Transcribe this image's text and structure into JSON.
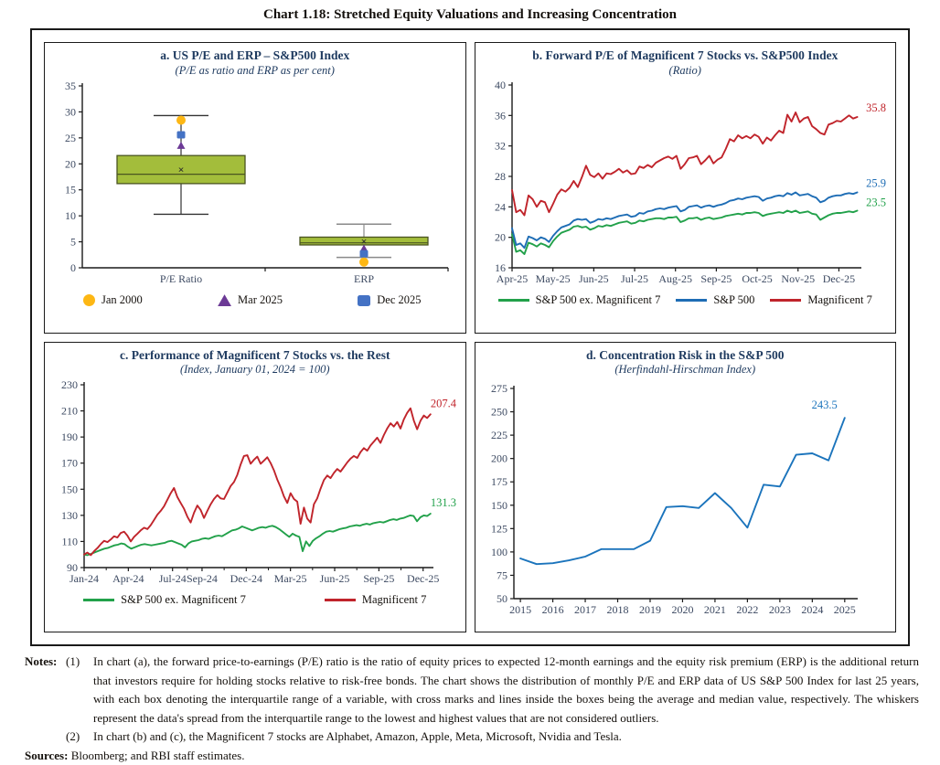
{
  "title": "Chart 1.18: Stretched Equity Valuations and Increasing Concentration",
  "notes": {
    "label": "Notes:",
    "note1_num": "(1)",
    "note1": "In chart (a), the forward price-to-earnings (P/E) ratio is the ratio of equity prices to expected 12-month earnings and the equity risk premium (ERP) is the additional return that investors require for holding stocks relative to risk-free bonds. The chart shows the distribution of monthly P/E and ERP data of US S&P 500 Index for last 25 years, with each box denoting the interquartile range of a variable, with cross marks and lines inside the boxes being the average and median value, respectively. The whiskers represent the data's spread from the interquartile range to the lowest and highest values that are not considered outliers.",
    "note2_num": "(2)",
    "note2": "In chart (b) and (c), the Magnificent 7 stocks are Alphabet, Amazon, Apple, Meta, Microsoft, Nvidia and Tesla.",
    "sources_label": "Sources:",
    "sources": "Bloomberg; and RBI staff estimates."
  },
  "chart_data": [
    {
      "id": "a",
      "type": "box",
      "title": "a. US P/E and ERP – S&P500 Index",
      "subtitle": "(P/E as ratio and ERP as per cent)",
      "ylim": [
        0,
        35
      ],
      "yticks": [
        0,
        5,
        10,
        15,
        20,
        25,
        30,
        35
      ],
      "margins": {
        "l": 34,
        "r": 12,
        "t": 7,
        "b": 24
      },
      "box_fill": "#A3BD3B",
      "box_stroke": "#4A5420",
      "groups": [
        {
          "label": "P/E Ratio",
          "center": 0.27,
          "q1": 16.2,
          "q3": 21.6,
          "median": 18.0,
          "mean": 18.9,
          "whisker_low": 10.3,
          "whisker_high": 29.3,
          "whisker_color": "#333333",
          "markers": {
            "jan2000": 28.4,
            "mar2025": 23.5,
            "dec2025": 25.6
          }
        },
        {
          "label": "ERP",
          "center": 0.77,
          "q1": 4.4,
          "q3": 5.9,
          "median": 4.8,
          "mean": 5.1,
          "whisker_low": 2.0,
          "whisker_high": 8.4,
          "whisker_color": "#8a8a8a",
          "markers": {
            "jan2000": 1.1,
            "mar2025": 3.7,
            "dec2025": 2.7
          }
        }
      ],
      "legend": [
        {
          "label": "Jan 2000",
          "marker": "circle",
          "color": "#FDB714"
        },
        {
          "label": "Mar 2025",
          "marker": "triangle",
          "color": "#6C3A96"
        },
        {
          "label": "Dec 2025",
          "marker": "square",
          "color": "#4472C4"
        }
      ]
    },
    {
      "id": "b",
      "type": "line",
      "title": "b. Forward P/E of Magnificent 7 Stocks vs. S&P500 Index",
      "subtitle": "(Ratio)",
      "ylim": [
        16,
        40
      ],
      "yticks": [
        16,
        20,
        24,
        28,
        32,
        36,
        40
      ],
      "xlim": [
        0,
        8.55
      ],
      "xticks": [
        0,
        1,
        2,
        3,
        4,
        5,
        6,
        7,
        8
      ],
      "xlabels": [
        "Apr-25",
        "May-25",
        "Jun-25",
        "Jul-25",
        "Aug-25",
        "Sep-25",
        "Oct-25",
        "Nov-25",
        "Dec-25"
      ],
      "margins": {
        "l": 34,
        "r": 30,
        "t": 6,
        "b": 24
      },
      "series": [
        {
          "name": "S&P 500 ex. Magnificent 7",
          "color": "#22A14A",
          "end_label": "23.5",
          "label_x": "right",
          "label_dy": -5,
          "xspan": [
            0,
            8.45
          ],
          "values": [
            20.4,
            18.1,
            18.3,
            17.8,
            19.3,
            19.1,
            18.8,
            19.2,
            19.0,
            18.7,
            19.5,
            20.1,
            20.6,
            20.8,
            21.0,
            21.4,
            21.5,
            21.3,
            21.4,
            21.0,
            21.2,
            21.5,
            21.4,
            21.6,
            21.5,
            21.7,
            21.9,
            22.0,
            22.1,
            21.8,
            21.9,
            22.2,
            22.1,
            22.3,
            22.4,
            22.5,
            22.5,
            22.4,
            22.6,
            22.6,
            22.7,
            22.0,
            22.2,
            22.5,
            22.5,
            22.6,
            22.3,
            22.5,
            22.6,
            22.4,
            22.5,
            22.6,
            22.8,
            22.9,
            23.0,
            23.1,
            23.0,
            23.2,
            23.2,
            23.3,
            23.2,
            22.8,
            23.0,
            23.1,
            23.2,
            23.3,
            23.2,
            23.5,
            23.3,
            23.5,
            23.2,
            23.3,
            23.4,
            23.1,
            23.0,
            22.3,
            22.6,
            22.9,
            23.1,
            23.2,
            23.2,
            23.3,
            23.4,
            23.3,
            23.5
          ]
        },
        {
          "name": "S&P 500",
          "color": "#1E6DB5",
          "end_label": "25.9",
          "label_x": "right",
          "label_dy": -6,
          "xspan": [
            0,
            8.45
          ],
          "values": [
            21.2,
            19.0,
            19.2,
            18.6,
            20.1,
            19.9,
            19.6,
            20.0,
            19.8,
            19.4,
            20.2,
            20.8,
            21.3,
            21.5,
            21.7,
            22.2,
            22.4,
            22.3,
            22.4,
            21.9,
            22.1,
            22.4,
            22.3,
            22.5,
            22.4,
            22.6,
            22.8,
            22.9,
            23.0,
            22.7,
            22.8,
            23.2,
            23.1,
            23.4,
            23.5,
            23.7,
            23.8,
            23.7,
            23.9,
            24.0,
            24.1,
            23.4,
            23.6,
            24.0,
            24.1,
            24.2,
            23.9,
            24.1,
            24.2,
            24.0,
            24.2,
            24.3,
            24.5,
            24.8,
            24.9,
            25.1,
            25.0,
            25.2,
            25.3,
            25.4,
            25.3,
            24.8,
            25.1,
            25.2,
            25.4,
            25.5,
            25.4,
            25.8,
            25.6,
            25.9,
            25.5,
            25.6,
            25.7,
            25.4,
            25.2,
            24.6,
            24.8,
            25.2,
            25.4,
            25.5,
            25.5,
            25.7,
            25.8,
            25.7,
            25.9
          ]
        },
        {
          "name": "Magnificent 7",
          "color": "#C0242B",
          "end_label": "35.8",
          "label_x": "right",
          "label_dy": -6,
          "xspan": [
            0,
            8.45
          ],
          "values": [
            26.2,
            23.3,
            23.6,
            22.9,
            25.5,
            25.0,
            24.0,
            24.8,
            24.6,
            23.3,
            24.4,
            25.6,
            26.3,
            26.0,
            26.5,
            27.4,
            26.6,
            27.9,
            29.4,
            28.2,
            27.9,
            28.4,
            27.7,
            28.4,
            28.3,
            28.6,
            29.0,
            28.5,
            28.8,
            28.3,
            28.4,
            29.3,
            29.1,
            29.5,
            29.2,
            29.8,
            30.1,
            30.4,
            30.6,
            30.3,
            30.7,
            29.0,
            29.6,
            30.4,
            30.5,
            30.7,
            29.6,
            30.1,
            30.7,
            29.7,
            30.2,
            30.5,
            31.6,
            32.9,
            32.6,
            33.4,
            33.0,
            33.3,
            33.0,
            33.5,
            33.2,
            32.3,
            33.1,
            32.7,
            33.4,
            34.0,
            33.7,
            36.1,
            35.2,
            36.4,
            35.1,
            35.6,
            35.8,
            34.6,
            34.2,
            33.7,
            33.5,
            34.8,
            35.0,
            35.3,
            35.2,
            35.6,
            36.0,
            35.6,
            35.8
          ]
        }
      ]
    },
    {
      "id": "c",
      "type": "line",
      "title": "c. Performance of Magnificent 7 Stocks vs. the Rest",
      "subtitle": "(Index, January 01, 2024 = 100)",
      "ylim": [
        90,
        230
      ],
      "yticks": [
        90,
        110,
        130,
        150,
        170,
        190,
        210,
        230
      ],
      "xlim": [
        0,
        23.7
      ],
      "xticks": [
        0,
        3,
        6,
        8,
        11,
        14,
        17,
        20,
        23
      ],
      "xminor": [
        1.5,
        4.5,
        7,
        9.5,
        12.5,
        15.5,
        18.5,
        21.5
      ],
      "xlabels": [
        "Jan-24",
        "Apr-24",
        "Jul-24",
        "Sep-24",
        "Dec-24",
        "Mar-25",
        "Jun-25",
        "Sep-25",
        "Dec-25"
      ],
      "margins": {
        "l": 36,
        "r": 28,
        "t": 6,
        "b": 24
      },
      "series": [
        {
          "name": "S&P 500 ex. Magnificent 7",
          "color": "#22A14A",
          "end_label": "131.3",
          "label_x": "right",
          "label_dy": -8,
          "xspan": [
            0,
            23.5
          ],
          "values": [
            100,
            99.5,
            100.5,
            101.5,
            102.5,
            103.5,
            104.5,
            105,
            106,
            107,
            107.5,
            108.5,
            108,
            106,
            104.5,
            105.5,
            106.5,
            107.5,
            108,
            107.5,
            107,
            107.5,
            108,
            108.5,
            109,
            110,
            110.5,
            109.5,
            108.5,
            107.5,
            105.5,
            108.5,
            110,
            110.5,
            111,
            112,
            112.5,
            112,
            113,
            114,
            114.5,
            114,
            115.5,
            117,
            118.5,
            119,
            120,
            121.5,
            120.5,
            119.5,
            118.5,
            119.5,
            120.5,
            121,
            120.5,
            121.5,
            122,
            121,
            119.5,
            117.5,
            115.5,
            113.5,
            116,
            114.5,
            113.5,
            102.5,
            110,
            106.5,
            110.5,
            112.5,
            114,
            116,
            117.5,
            118,
            117.5,
            118.5,
            119.5,
            120,
            120.5,
            121.5,
            122,
            122.5,
            122,
            123,
            123.5,
            123,
            124,
            124.5,
            125,
            124.5,
            125.5,
            126.5,
            127,
            126.5,
            127.5,
            128,
            129,
            130,
            129.5,
            125.5,
            128.5,
            130,
            129.5,
            131.3
          ]
        },
        {
          "name": "Magnificent 7",
          "color": "#C0242B",
          "end_label": "207.4",
          "label_x": "right",
          "label_dy": -8,
          "xspan": [
            0,
            23.5
          ],
          "values": [
            100,
            101.5,
            99.5,
            102.5,
            105,
            108,
            110.5,
            109.5,
            111.5,
            114,
            113,
            116.5,
            117.5,
            114.5,
            110,
            113.5,
            116,
            118.5,
            120.5,
            119.5,
            122.5,
            126.5,
            130.5,
            133.5,
            137,
            142,
            147,
            151,
            144,
            139.5,
            135,
            129,
            124.5,
            132,
            137.5,
            134,
            128,
            133.5,
            138.5,
            142.5,
            145.5,
            143,
            142.5,
            147.5,
            152.5,
            155.5,
            161,
            169,
            175.5,
            176,
            169.5,
            172.5,
            175,
            169.5,
            172,
            174.5,
            170,
            164.5,
            157.5,
            151.5,
            144.5,
            139.5,
            147,
            142.5,
            140.5,
            123.5,
            136,
            127.5,
            124.5,
            138.5,
            143,
            150.5,
            157,
            160.5,
            158.5,
            162.5,
            165.5,
            163.5,
            167,
            170.5,
            173.5,
            175.5,
            174,
            178.5,
            181.5,
            179.5,
            183.5,
            186.5,
            189.5,
            185.5,
            191.5,
            196.5,
            200.5,
            198,
            201.5,
            196.5,
            203.5,
            208.5,
            212,
            202.5,
            196,
            202.5,
            206.5,
            204.5,
            207.4
          ]
        }
      ]
    },
    {
      "id": "d",
      "type": "line",
      "title": "d. Concentration Risk in the S&P 500",
      "subtitle": "(Herfindahl-Hirschman Index)",
      "ylim": [
        50,
        275
      ],
      "yticks": [
        50,
        75,
        100,
        125,
        150,
        175,
        200,
        225,
        250,
        275
      ],
      "xlim": [
        2014.8,
        2025.4
      ],
      "xticks": [
        2015,
        2016,
        2017,
        2018,
        2019,
        2020,
        2021,
        2022,
        2023,
        2024,
        2025
      ],
      "xlabels": [
        "2015",
        "2016",
        "2017",
        "2018",
        "2019",
        "2020",
        "2021",
        "2022",
        "2023",
        "2024",
        "2025"
      ],
      "margins": {
        "l": 36,
        "r": 34,
        "t": 10,
        "b": 26
      },
      "series": [
        {
          "name": "Herfindahl-Hirschman Index",
          "color": "#1B74BC",
          "end_label": "243.5",
          "label_dx": -8,
          "label_dy": -10,
          "label_anchor": "end",
          "x": [
            2015,
            2015.5,
            2016,
            2016.5,
            2017,
            2017.5,
            2018,
            2018.5,
            2019,
            2019.5,
            2020,
            2020.5,
            2021,
            2021.5,
            2022,
            2022.5,
            2023,
            2023.5,
            2024,
            2024.5,
            2025
          ],
          "values": [
            93,
            87,
            88,
            91,
            95,
            103,
            103,
            103,
            112,
            148,
            149,
            147,
            163,
            147,
            126,
            172,
            170,
            204,
            205.5,
            198,
            243.5
          ]
        }
      ]
    }
  ]
}
